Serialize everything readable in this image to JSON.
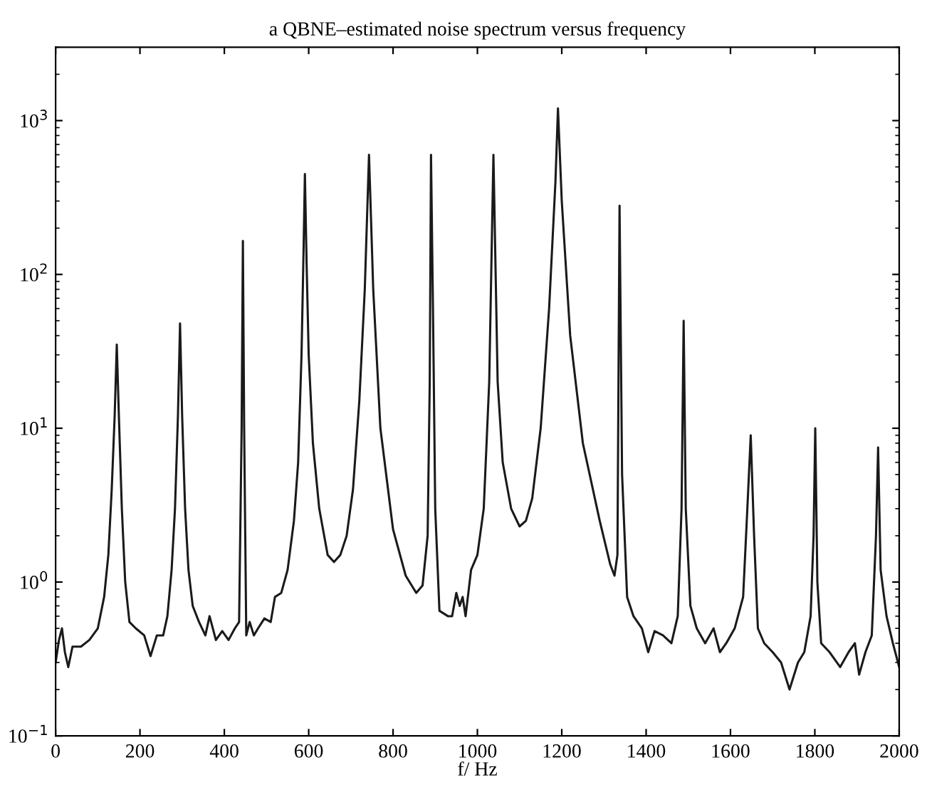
{
  "chart_data": {
    "type": "line",
    "title": "a QBNE–estimated noise spectrum versus frequency",
    "xlabel": "f/ Hz",
    "log": "y",
    "xlim": [
      0,
      2000
    ],
    "ylim": [
      0.1,
      3000
    ],
    "xticks": [
      0,
      200,
      400,
      600,
      800,
      1000,
      1200,
      1400,
      1600,
      1800,
      2000
    ],
    "yticks": [
      {
        "value": 0.1,
        "label": "10$^{−1}$"
      },
      {
        "value": 1,
        "label": "10$^{0}$"
      },
      {
        "value": 10,
        "label": "10$^{1}$"
      },
      {
        "value": 100,
        "label": "10$^{2}$"
      },
      {
        "value": 1000,
        "label": "10$^{3}$"
      }
    ],
    "grid": false,
    "legend": false,
    "marker": "none",
    "line_style": "solid",
    "series": [
      {
        "color": "#1a1a1a",
        "x": [
          0,
          8,
          15,
          22,
          30,
          40,
          60,
          80,
          100,
          115,
          125,
          133,
          140,
          145,
          150,
          157,
          165,
          175,
          190,
          210,
          225,
          240,
          255,
          265,
          275,
          283,
          290,
          295,
          300,
          307,
          315,
          325,
          340,
          355,
          365,
          380,
          395,
          410,
          425,
          435,
          441,
          444,
          447,
          452,
          460,
          470,
          480,
          495,
          510,
          520,
          535,
          550,
          565,
          575,
          583,
          588,
          591,
          595,
          600,
          610,
          625,
          645,
          660,
          675,
          690,
          705,
          720,
          733,
          743,
          753,
          770,
          800,
          830,
          855,
          870,
          882,
          887,
          890,
          895,
          900,
          910,
          930,
          940,
          950,
          958,
          965,
          972,
          985,
          1000,
          1015,
          1028,
          1038,
          1048,
          1060,
          1080,
          1100,
          1115,
          1130,
          1150,
          1170,
          1185,
          1191,
          1200,
          1220,
          1250,
          1290,
          1315,
          1325,
          1332,
          1337,
          1343,
          1355,
          1370,
          1390,
          1405,
          1420,
          1440,
          1460,
          1475,
          1484,
          1489,
          1494,
          1505,
          1520,
          1540,
          1560,
          1575,
          1590,
          1610,
          1630,
          1640,
          1648,
          1656,
          1665,
          1680,
          1700,
          1720,
          1740,
          1760,
          1775,
          1790,
          1797,
          1801,
          1806,
          1815,
          1835,
          1860,
          1880,
          1895,
          1905,
          1920,
          1935,
          1945,
          1950,
          1956,
          1970,
          1985,
          2000
        ],
        "values": [
          0.3,
          0.42,
          0.5,
          0.35,
          0.28,
          0.38,
          0.38,
          0.42,
          0.5,
          0.8,
          1.5,
          4,
          12,
          35,
          12,
          3,
          1,
          0.55,
          0.5,
          0.45,
          0.33,
          0.45,
          0.45,
          0.6,
          1.2,
          3,
          12,
          48,
          12,
          3,
          1.2,
          0.7,
          0.55,
          0.45,
          0.6,
          0.42,
          0.48,
          0.42,
          0.5,
          0.55,
          10,
          165,
          10,
          0.45,
          0.55,
          0.45,
          0.5,
          0.58,
          0.55,
          0.8,
          0.85,
          1.2,
          2.5,
          6,
          30,
          150,
          450,
          120,
          30,
          8,
          3,
          1.5,
          1.35,
          1.5,
          2,
          4,
          15,
          80,
          600,
          80,
          10,
          2.2,
          1.1,
          0.85,
          0.95,
          2,
          20,
          600,
          50,
          3,
          0.65,
          0.6,
          0.6,
          0.85,
          0.7,
          0.8,
          0.6,
          1.2,
          1.5,
          3,
          20,
          600,
          20,
          6,
          3,
          2.3,
          2.5,
          3.5,
          10,
          60,
          400,
          1200,
          300,
          40,
          8,
          2.5,
          1.3,
          1.1,
          1.5,
          280,
          5,
          0.8,
          0.6,
          0.5,
          0.35,
          0.48,
          0.45,
          0.4,
          0.6,
          3,
          50,
          3,
          0.7,
          0.5,
          0.4,
          0.5,
          0.35,
          0.4,
          0.5,
          0.8,
          3,
          9,
          2,
          0.5,
          0.4,
          0.35,
          0.3,
          0.2,
          0.3,
          0.35,
          0.6,
          2,
          10,
          1,
          0.4,
          0.35,
          0.28,
          0.35,
          0.4,
          0.25,
          0.35,
          0.45,
          2,
          7.5,
          1.2,
          0.6,
          0.4,
          0.28
        ]
      }
    ]
  }
}
